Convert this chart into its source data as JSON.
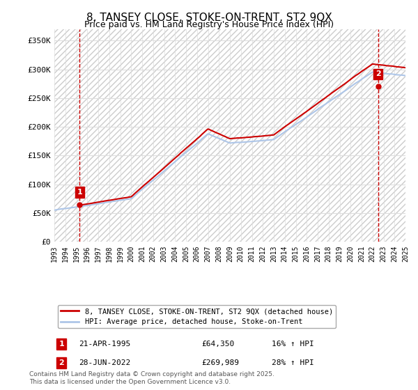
{
  "title": "8, TANSEY CLOSE, STOKE-ON-TRENT, ST2 9QX",
  "subtitle": "Price paid vs. HM Land Registry's House Price Index (HPI)",
  "ylim": [
    0,
    370000
  ],
  "yticks": [
    0,
    50000,
    100000,
    150000,
    200000,
    250000,
    300000,
    350000
  ],
  "ytick_labels": [
    "£0",
    "£50K",
    "£100K",
    "£150K",
    "£200K",
    "£250K",
    "£300K",
    "£350K"
  ],
  "hpi_color": "#aec6e8",
  "price_color": "#cc0000",
  "dashed_line_color": "#cc0000",
  "background_color": "#ffffff",
  "grid_color": "#dddddd",
  "legend_label_price": "8, TANSEY CLOSE, STOKE-ON-TRENT, ST2 9QX (detached house)",
  "legend_label_hpi": "HPI: Average price, detached house, Stoke-on-Trent",
  "annotation1_label": "1",
  "annotation1_date": "21-APR-1995",
  "annotation1_price": 64350,
  "annotation1_hpi_pct": "16% ↑ HPI",
  "annotation2_label": "2",
  "annotation2_date": "28-JUN-2022",
  "annotation2_price": 269989,
  "annotation2_hpi_pct": "28% ↑ HPI",
  "footer": "Contains HM Land Registry data © Crown copyright and database right 2025.\nThis data is licensed under the Open Government Licence v3.0.",
  "xmin_year": 1993,
  "xmax_year": 2025,
  "sale1_x": 1995.3,
  "sale2_x": 2022.5,
  "xtick_years": [
    1993,
    1994,
    1995,
    1996,
    1997,
    1998,
    1999,
    2000,
    2001,
    2002,
    2003,
    2004,
    2005,
    2006,
    2007,
    2008,
    2009,
    2010,
    2011,
    2012,
    2013,
    2014,
    2015,
    2016,
    2017,
    2018,
    2019,
    2020,
    2021,
    2022,
    2023,
    2024,
    2025
  ]
}
